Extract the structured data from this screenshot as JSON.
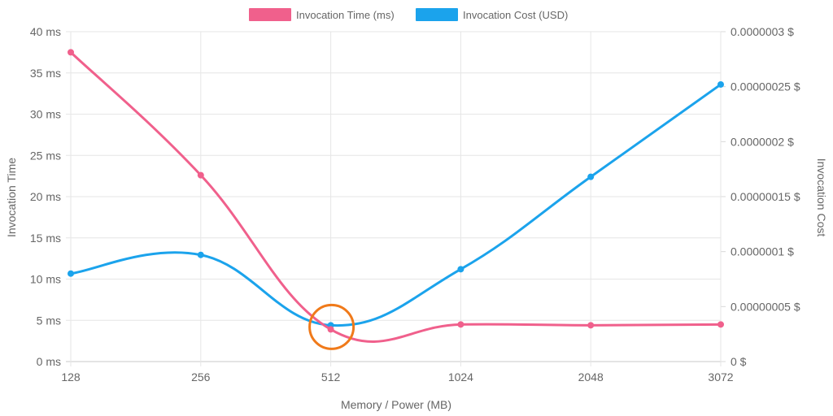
{
  "chart_data": {
    "type": "line",
    "categories": [
      "128",
      "256",
      "512",
      "1024",
      "2048",
      "3072"
    ],
    "xlabel": "Memory / Power (MB)",
    "ylabel_left": "Invocation Time",
    "ylabel_right": "Invocation Cost",
    "y_left_ticks": [
      "0 ms",
      "5 ms",
      "10 ms",
      "15 ms",
      "20 ms",
      "25 ms",
      "30 ms",
      "35 ms",
      "40 ms"
    ],
    "y_right_ticks": [
      "0 $",
      "0.00000005 $",
      "0.0000001 $",
      "0.00000015 $",
      "0.0000002 $",
      "0.00000025 $",
      "0.0000003 $"
    ],
    "ylim_left": [
      0,
      40
    ],
    "ylim_right": [
      0,
      3e-07
    ],
    "grid": true,
    "legend_position": "top",
    "series": [
      {
        "name": "Invocation Time (ms)",
        "axis": "left",
        "color": "#f0608c",
        "values": [
          37.5,
          22.6,
          3.9,
          4.5,
          4.4,
          4.5
        ]
      },
      {
        "name": "Invocation Cost (USD)",
        "axis": "right",
        "color": "#1ba3ec",
        "values": [
          8e-08,
          9.7e-08,
          3.3e-08,
          8.4e-08,
          1.68e-07,
          2.52e-07
        ]
      }
    ],
    "annotation": {
      "type": "circle",
      "category": "512",
      "value_left": 4.2,
      "color": "#f07a1a"
    }
  }
}
